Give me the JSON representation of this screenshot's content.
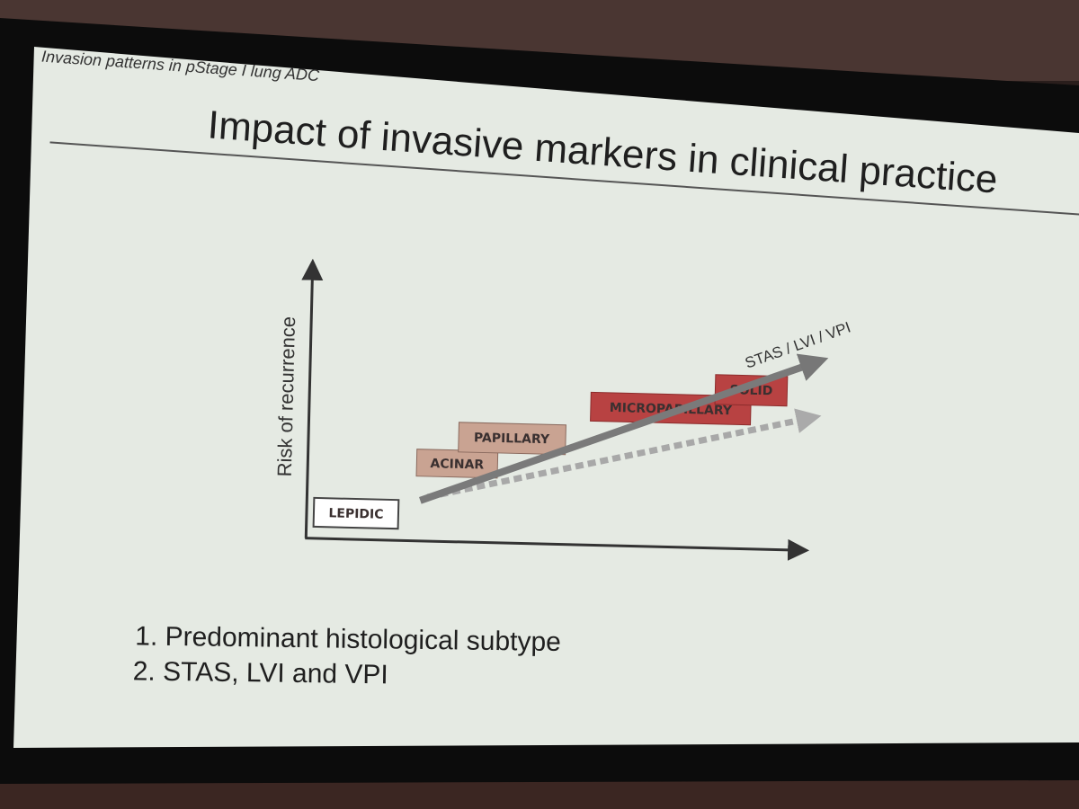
{
  "header": {
    "subtitle": "Invasion patterns in pStage I lung ADC",
    "title": "Impact of invasive markers in clinical practice"
  },
  "diagram": {
    "y_axis_label": "Risk of recurrence",
    "subtypes": [
      "LEPIDIC",
      "ACINAR",
      "PAPILLARY",
      "MICROPAPILLARY",
      "SOLID"
    ],
    "arrow_label": "STAS / LVI / VPI"
  },
  "list": [
    "1. Predominant histological subtype",
    "2. STAS, LVI and VPI"
  ]
}
